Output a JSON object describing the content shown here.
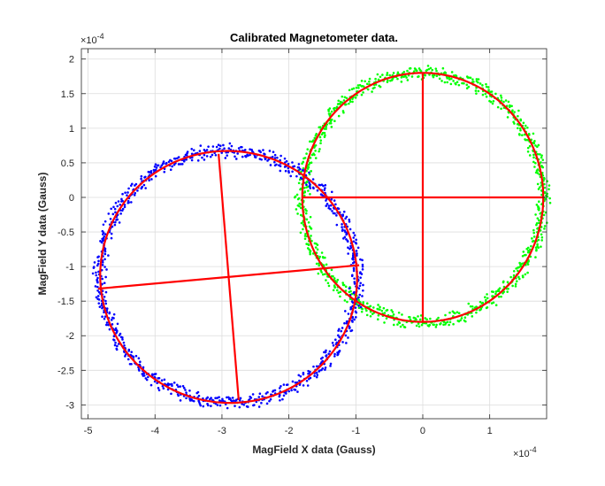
{
  "chart_data": {
    "type": "scatter",
    "title": "Calibrated Magnetometer data.",
    "xlabel": "MagField X data (Gauss)",
    "ylabel": "MagField Y data (Gauss)",
    "x_exponent_label": "×10",
    "x_exponent_power": "-4",
    "y_exponent_label": "×10",
    "y_exponent_power": "-4",
    "xlim": [
      -5.1,
      1.85
    ],
    "ylim": [
      -3.2,
      2.15
    ],
    "x_ticks": [
      -5,
      -4,
      -3,
      -2,
      -1,
      0,
      1
    ],
    "x_tick_labels": [
      "-5",
      "-4",
      "-3",
      "-2",
      "-1",
      "0",
      "1"
    ],
    "y_ticks": [
      2,
      1.5,
      1,
      0.5,
      0,
      -0.5,
      -1,
      -1.5,
      -2,
      -2.5,
      -3
    ],
    "y_tick_labels": [
      "2",
      "1.5",
      "1",
      "0.5",
      "0",
      "-0.5",
      "-1",
      "-1.5",
      "-2",
      "-2.5",
      "-3"
    ],
    "grid": true,
    "ellipses": [
      {
        "center": [
          0,
          0
        ],
        "radius_x": 1.8,
        "radius_y": 1.8,
        "major_axis_end": [
          1.8,
          0
        ],
        "minor_axis_end": [
          0,
          1.8
        ],
        "point_color": "#00ff00",
        "fit_color": "#ff0000"
      },
      {
        "center": [
          -2.9,
          -1.15
        ],
        "radius_x": 1.92,
        "radius_y": 1.82,
        "rotation_deg": -6,
        "major_axis_ends": [
          [
            -4.85,
            -1.32
          ],
          [
            -0.95,
            -0.98
          ]
        ],
        "minor_axis_ends": [
          [
            -3.05,
            0.63
          ],
          [
            -2.75,
            -2.93
          ]
        ],
        "point_color": "#0000ff",
        "fit_color": "#ff0000"
      }
    ]
  }
}
